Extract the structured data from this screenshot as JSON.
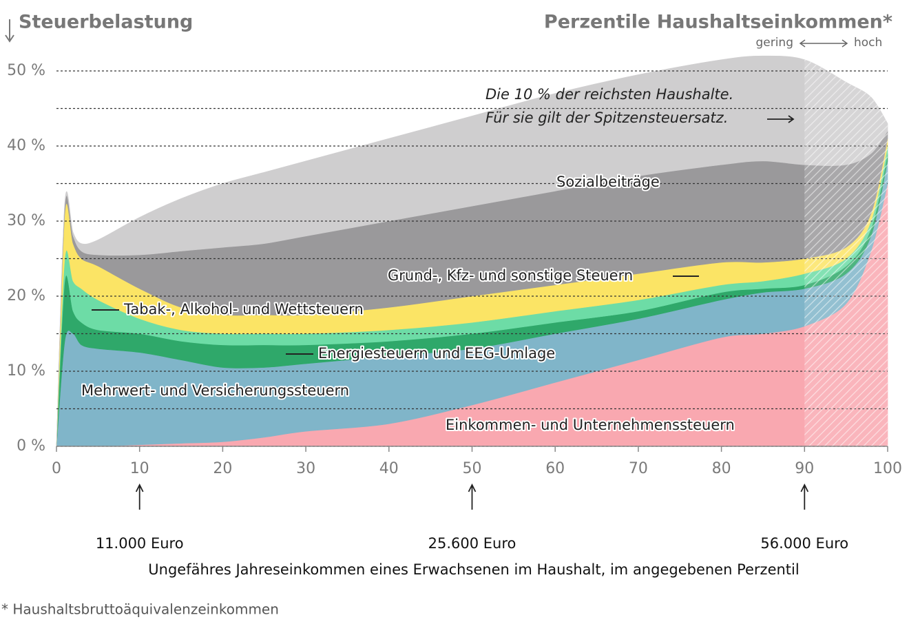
{
  "chart_data": {
    "type": "stacked_area",
    "title": "Steuerbelastung",
    "subtitle": "Perzentile Haushaltseinkommen*",
    "range_labels": [
      "gering",
      "hoch"
    ],
    "xlabel": "Ungefähres Jahreseinkommen eines Erwachsenen im Haushalt, im angegebenen Perzentil",
    "footnote": "* Haushaltsbruttoäquivalenzeinkommen",
    "annotation": [
      "Die 10 % der reichsten Haushalte.",
      "Für sie gilt der Spitzensteuersatz."
    ],
    "highlight_x": [
      90,
      100
    ],
    "income_markers": [
      {
        "x": 10,
        "label": "11.000 Euro"
      },
      {
        "x": 50,
        "label": "25.600 Euro"
      },
      {
        "x": 90,
        "label": "56.000 Euro"
      }
    ],
    "x": [
      0,
      1,
      2,
      3,
      5,
      10,
      15,
      20,
      25,
      30,
      40,
      50,
      60,
      70,
      80,
      85,
      90,
      95,
      98,
      100
    ],
    "series": [
      {
        "name": "Einkommen- und Unternehmenssteuern",
        "color": "#f9a8b0",
        "values": [
          0,
          0,
          0,
          0,
          0,
          0.2,
          0.4,
          0.6,
          1.2,
          2,
          3,
          5.5,
          8.5,
          11.5,
          14.5,
          15,
          16,
          19,
          26,
          35
        ]
      },
      {
        "name": "Mehrwert- und Versicherungssteuern",
        "color": "#80b5c9",
        "values": [
          0,
          14,
          15,
          13.5,
          13,
          12.3,
          11.1,
          9.9,
          9.3,
          9,
          9,
          7.5,
          6.5,
          5.5,
          5,
          5.5,
          5,
          4,
          2,
          3
        ]
      },
      {
        "name": "Energiesteuern und EEG-Umlage",
        "color": "#2fa86a",
        "values": [
          0,
          8,
          3,
          3,
          2.5,
          2.5,
          2.5,
          3,
          3,
          2.5,
          2,
          2,
          1.5,
          1,
          1,
          0.5,
          0.5,
          1,
          1,
          1
        ]
      },
      {
        "name": "Tabak-, Alkohol- und Wettsteuern",
        "color": "#6ddca6",
        "values": [
          0,
          3,
          4,
          4.5,
          4,
          2,
          1.5,
          1.5,
          1.5,
          1.5,
          1.5,
          1.5,
          1.5,
          1.5,
          1,
          1,
          1.5,
          1,
          1,
          1
        ]
      },
      {
        "name": "Grund-, Kfz- und sonstige Steuern",
        "color": "#fbe465",
        "values": [
          0,
          6,
          5,
          4,
          4.5,
          4,
          3,
          2.5,
          2.5,
          2.5,
          3,
          3.5,
          3.5,
          3.5,
          3,
          2.5,
          2,
          1.5,
          1,
          1
        ]
      },
      {
        "name": "Sozialbeiträge",
        "color": "#9a999b",
        "values": [
          0,
          1,
          1,
          1,
          1.5,
          4.5,
          7.5,
          9,
          9.5,
          10.5,
          11.5,
          12,
          12.5,
          13,
          13,
          13.5,
          12.5,
          11,
          8,
          1
        ]
      },
      {
        "color": "#cfcecf",
        "values": [
          0,
          0.5,
          0.5,
          1,
          2,
          5,
          7,
          8.5,
          9.5,
          10,
          11,
          12,
          13,
          13.5,
          14,
          14,
          14,
          11,
          7.5,
          1
        ]
      }
    ],
    "xlim": [
      0,
      100
    ],
    "xticks": [
      0,
      10,
      20,
      30,
      40,
      50,
      60,
      70,
      80,
      90,
      100
    ],
    "ylim": [
      0,
      50
    ],
    "yticks": [
      {
        "value": 0,
        "label": "0 %"
      },
      {
        "value": 10,
        "label": "10 %"
      },
      {
        "value": 20,
        "label": "20 %"
      },
      {
        "value": 30,
        "label": "30 %"
      },
      {
        "value": 40,
        "label": "40 %"
      },
      {
        "value": 50,
        "label": "50 %"
      }
    ],
    "yminor": [
      5,
      15,
      25,
      35,
      45
    ],
    "grid": true
  }
}
